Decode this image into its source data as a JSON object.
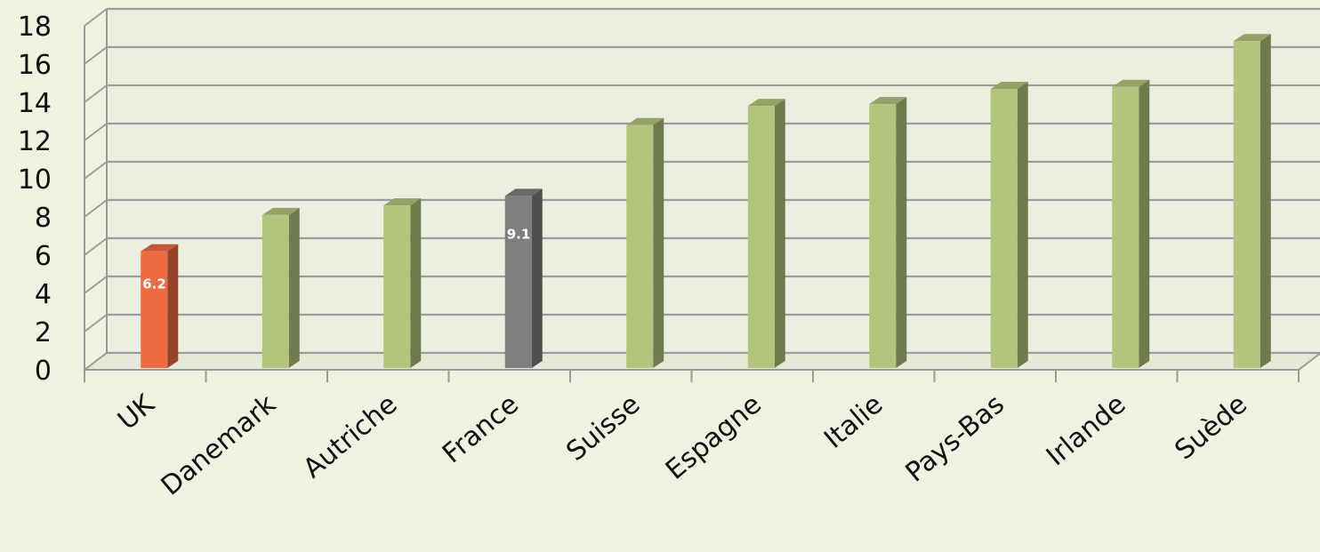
{
  "chart_data": {
    "type": "bar",
    "title": "",
    "xlabel": "",
    "ylabel": "",
    "categories": [
      "UK",
      "Danemark",
      "Autriche",
      "France",
      "Suisse",
      "Espagne",
      "Italie",
      "Pays-Bas",
      "Irlande",
      "Suède"
    ],
    "values": [
      6.2,
      8.1,
      8.6,
      9.1,
      12.8,
      13.8,
      13.9,
      14.7,
      14.8,
      17.2
    ],
    "data_labels": [
      "6.2",
      "",
      "",
      "9.1",
      "",
      "",
      "",
      "",
      "",
      ""
    ],
    "bar_colors": [
      "#ee6a43",
      "#b3c57c",
      "#b3c57c",
      "#7f7f7f",
      "#b3c57c",
      "#b3c57c",
      "#b3c57c",
      "#b3c57c",
      "#b3c57c",
      "#b3c57c"
    ],
    "ylim": [
      0,
      18
    ],
    "yticks": [
      0,
      2,
      4,
      6,
      8,
      10,
      12,
      14,
      16,
      18
    ],
    "grid": true,
    "legend": "none"
  }
}
